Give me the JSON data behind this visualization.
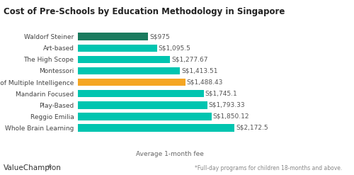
{
  "title": "Cost of Pre-Schools by Education Methodology in Singapore",
  "categories": [
    "Whole Brain Learning",
    "Reggio Emilia",
    "Play-Based",
    "Mandarin Focused",
    "Theory of Multiple Intelligence",
    "Montessori",
    "The High Scope",
    "Art-based",
    "Waldorf Steiner"
  ],
  "values": [
    2172.5,
    1850.12,
    1793.33,
    1745.1,
    1488.43,
    1413.51,
    1277.67,
    1095.5,
    975
  ],
  "labels": [
    "S$2,172.5",
    "S$1,850.12",
    "S$1,793.33",
    "S$1,745.1",
    "S$1,488.43",
    "S$1,413.51",
    "S$1,277.67",
    "S$1,095.5",
    "S$975"
  ],
  "bar_colors": [
    "#00c5b0",
    "#00c5b0",
    "#00c5b0",
    "#00c5b0",
    "#f5a623",
    "#00c5b0",
    "#00c5b0",
    "#00c5b0",
    "#1a7a5e"
  ],
  "xlabel": "Average 1-month fee",
  "footnote": "*Full-day programs for children 18-months and above.",
  "branding": "ValueChampion",
  "title_fontsize": 8.5,
  "label_fontsize": 6.5,
  "tick_fontsize": 6.5,
  "xlabel_fontsize": 6.5,
  "footnote_fontsize": 5.5,
  "branding_fontsize": 7.5,
  "xlim": [
    0,
    2600
  ],
  "background_color": "#ffffff"
}
